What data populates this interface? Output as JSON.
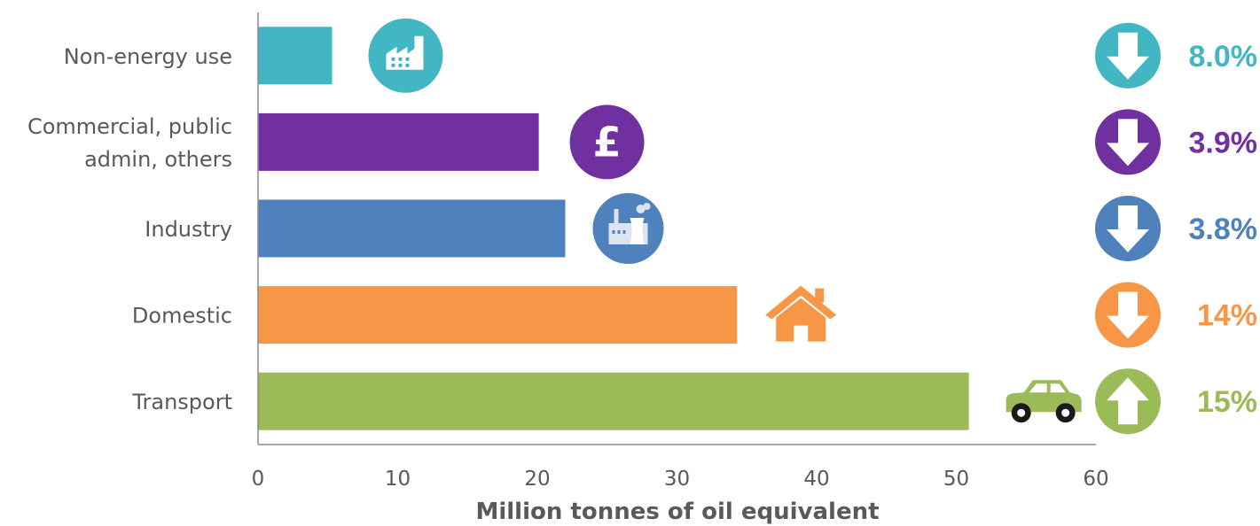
{
  "chart_data": {
    "type": "bar",
    "orientation": "horizontal",
    "categories": [
      "Non-energy use",
      "Commercial, public admin, others",
      "Industry",
      "Domestic",
      "Transport"
    ],
    "category_lines": [
      [
        "Non-energy use"
      ],
      [
        "Commercial, public",
        "admin, others"
      ],
      [
        "Industry"
      ],
      [
        "Domestic"
      ],
      [
        "Transport"
      ]
    ],
    "values": [
      5.3,
      20.1,
      22.0,
      34.3,
      50.9
    ],
    "colors": [
      "#43b6c3",
      "#7030a0",
      "#4f81bd",
      "#f79646",
      "#9bbb59"
    ],
    "icons": [
      "factory-icon",
      "pound-icon",
      "power-plant-icon",
      "house-icon",
      "car-icon"
    ],
    "change_direction": [
      "down",
      "down",
      "down",
      "down",
      "up"
    ],
    "change_labels": [
      "8.0%",
      "3.9%",
      "3.8%",
      "14%",
      "15%"
    ],
    "change_colors": [
      "#43b6c3",
      "#7030a0",
      "#4f81bd",
      "#f79646",
      "#9bbb59"
    ],
    "xlabel": "Million tonnes of oil equivalent",
    "ylabel": "",
    "xlim": [
      0,
      60
    ],
    "xticks": [
      0,
      10,
      20,
      30,
      40,
      50,
      60
    ],
    "grid": false,
    "legend": "none"
  }
}
